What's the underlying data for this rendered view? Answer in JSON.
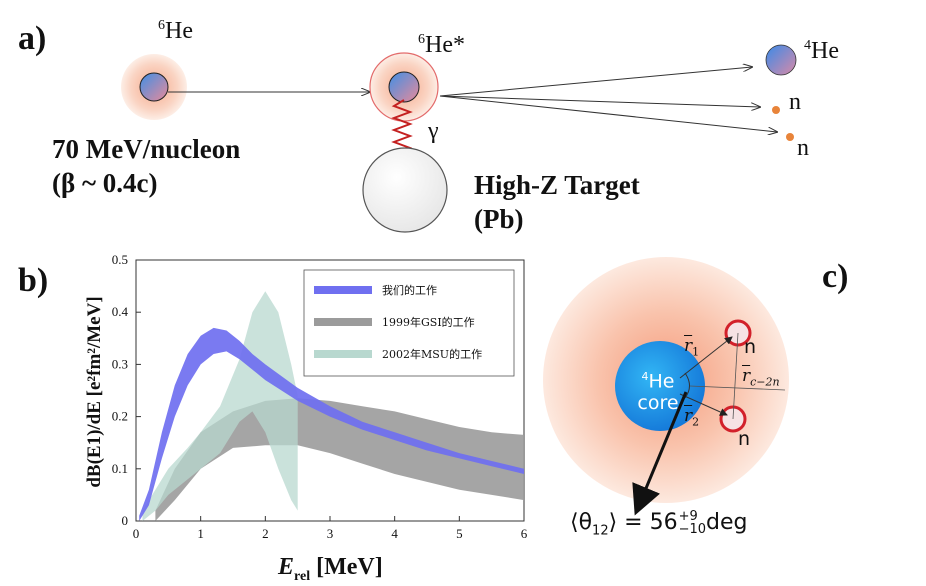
{
  "panel_labels": {
    "a": "a)",
    "b": "b)",
    "c": "c)"
  },
  "diagram_a": {
    "projectile_label_pre": "6",
    "projectile_label": "He",
    "excited_label_pre": "6",
    "excited_label": "He*",
    "gamma_label": "γ",
    "energy_line1": "70 MeV/nucleon",
    "energy_line2": "(β ~ 0.4c)",
    "target_line1": "High-Z Target",
    "target_line2": "(Pb)",
    "product_alpha_pre": "4",
    "product_alpha": "He",
    "product_n1": "n",
    "product_n2": "n"
  },
  "chart_data": {
    "type": "area",
    "xlabel": "E_rel [MeV]",
    "xlabel_main": "E",
    "xlabel_sub": "rel",
    "xlabel_unit": "[MeV]",
    "ylabel": "dB(E1)/dE [e²fm²/MeV]",
    "xlim": [
      0,
      6
    ],
    "ylim": [
      0,
      0.5
    ],
    "x_ticks": [
      "0",
      "1",
      "2",
      "3",
      "4",
      "5",
      "6"
    ],
    "y_ticks": [
      "0",
      "0.1",
      "0.2",
      "0.3",
      "0.4",
      "0.5"
    ],
    "legend_position": "top-right",
    "series": [
      {
        "name": "我们的工作",
        "color": "#6f6ff0",
        "x": [
          0.05,
          0.2,
          0.4,
          0.6,
          0.8,
          1.0,
          1.2,
          1.4,
          1.6,
          1.8,
          2.0,
          2.5,
          3.0,
          3.5,
          4.0,
          4.5,
          5.0,
          5.5,
          6.0
        ],
        "lower": [
          0.0,
          0.03,
          0.12,
          0.2,
          0.26,
          0.3,
          0.32,
          0.325,
          0.31,
          0.29,
          0.27,
          0.23,
          0.2,
          0.175,
          0.155,
          0.135,
          0.12,
          0.105,
          0.09
        ],
        "upper": [
          0.01,
          0.06,
          0.17,
          0.26,
          0.32,
          0.355,
          0.37,
          0.365,
          0.345,
          0.32,
          0.3,
          0.255,
          0.22,
          0.19,
          0.17,
          0.15,
          0.13,
          0.115,
          0.1
        ]
      },
      {
        "name": "1999年GSI的工作",
        "color": "#9b9b9b",
        "x": [
          0.3,
          0.6,
          1.0,
          1.5,
          2.0,
          2.5,
          3.0,
          3.5,
          4.0,
          4.5,
          5.0,
          5.5,
          6.0
        ],
        "lower": [
          0.0,
          0.04,
          0.1,
          0.14,
          0.145,
          0.145,
          0.13,
          0.11,
          0.09,
          0.075,
          0.06,
          0.05,
          0.04
        ],
        "upper": [
          0.02,
          0.1,
          0.17,
          0.21,
          0.23,
          0.235,
          0.23,
          0.22,
          0.21,
          0.195,
          0.18,
          0.17,
          0.165
        ]
      },
      {
        "name": "2002年MSU的工作",
        "color": "#b8d8cf",
        "x": [
          0.1,
          0.3,
          0.5,
          0.8,
          1.0,
          1.3,
          1.6,
          1.8,
          2.0,
          2.2,
          2.4,
          2.5
        ],
        "lower": [
          0.0,
          0.02,
          0.05,
          0.08,
          0.1,
          0.13,
          0.19,
          0.21,
          0.17,
          0.1,
          0.04,
          0.02
        ],
        "upper": [
          0.02,
          0.06,
          0.1,
          0.14,
          0.17,
          0.22,
          0.31,
          0.4,
          0.44,
          0.4,
          0.3,
          0.24
        ]
      }
    ]
  },
  "diagram_c": {
    "core_line1_pre": "4",
    "core_line1": "He",
    "core_line2": "core",
    "neutron1": "n",
    "neutron2": "n",
    "vec_r1": "r",
    "vec_r1_sub": "1",
    "vec_r2": "r",
    "vec_r2_sub": "2",
    "vec_rc": "r",
    "vec_rc_sub": "c−2n",
    "angle_lhs": "⟨θ",
    "angle_lhs_sub": "12",
    "angle_lhs_close": "⟩",
    "angle_eq": " = 56",
    "angle_sup": "+9",
    "angle_sub": "−10",
    "angle_unit": "deg"
  }
}
